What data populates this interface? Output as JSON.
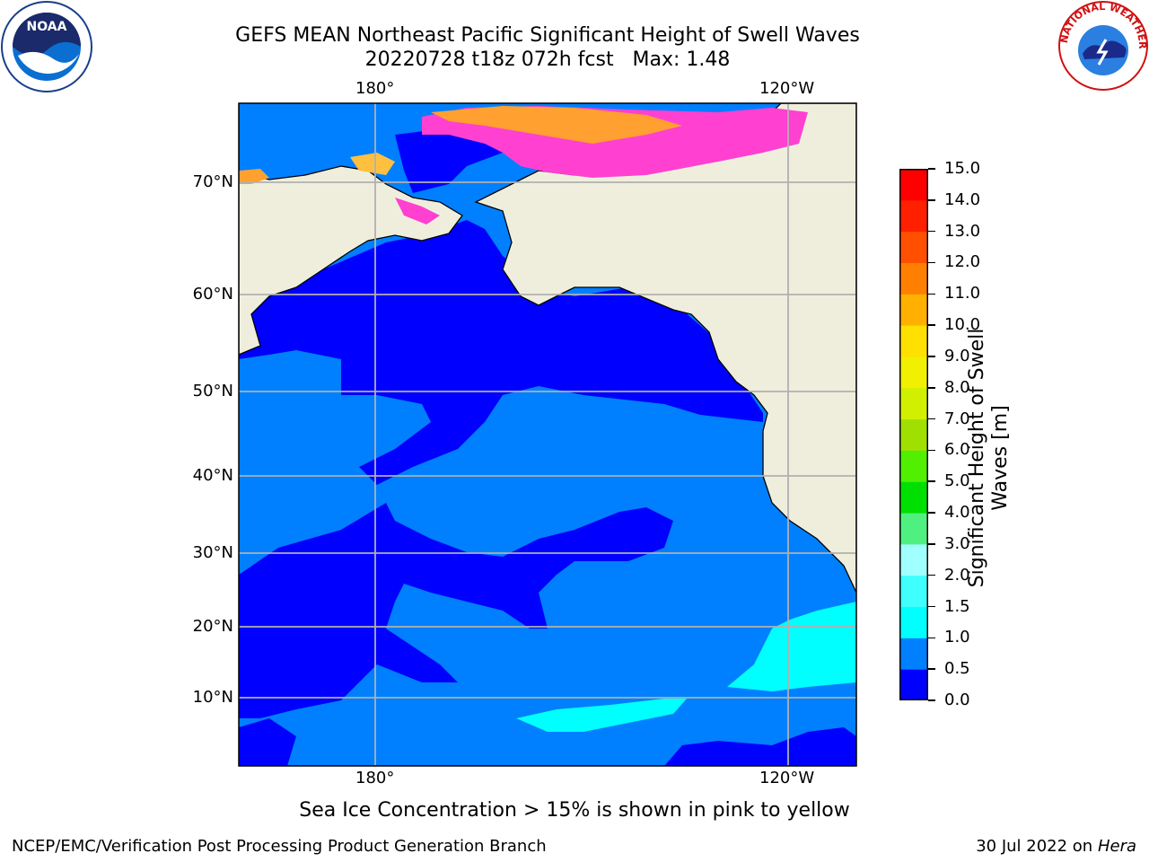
{
  "title_line1": "GEFS MEAN Northeast Pacific Significant Height of Swell Waves",
  "title_line2": "20220728 t18z 072h fcst   Max: 1.48",
  "lon_labels": [
    "180°",
    "120°W"
  ],
  "lat_labels": [
    "70°N",
    "60°N",
    "50°N",
    "40°N",
    "30°N",
    "20°N",
    "10°N"
  ],
  "colorbar": {
    "label_line1": "Significant Height of Swell",
    "label_line2": "Waves [m]",
    "ticks": [
      "0.0",
      "0.5",
      "1.0",
      "1.5",
      "2.0",
      "3.0",
      "4.0",
      "5.0",
      "6.0",
      "7.0",
      "8.0",
      "9.0",
      "10.0",
      "11.0",
      "12.0",
      "13.0",
      "14.0",
      "15.0"
    ],
    "colors": [
      "#0000ff",
      "#0080ff",
      "#00ffff",
      "#40ffff",
      "#a0ffff",
      "#50f080",
      "#00e000",
      "#50f000",
      "#a0e000",
      "#d0f000",
      "#f0f000",
      "#ffe000",
      "#ffb000",
      "#ff8000",
      "#ff5000",
      "#ff2000",
      "#ff0000"
    ]
  },
  "sea_ice_note": "Sea Ice Concentration > 15% is shown in pink to yellow",
  "footer_left": "NCEP/EMC/Verification Post Processing Product Generation Branch",
  "footer_date": "30 Jul 2022 on ",
  "footer_machine": "Hera",
  "logos": {
    "noaa_text": "NOAA",
    "nws_text": "NATIONAL WEATHER SERVICE"
  },
  "colors": {
    "land": "#efeedd",
    "grid": "#b0b0b0",
    "swell_low": "#0000ff",
    "swell_mid": "#0080ff",
    "swell_high": "#00ffff",
    "ice_pink": "#ff40d0",
    "ice_yellow": "#ffe020"
  }
}
